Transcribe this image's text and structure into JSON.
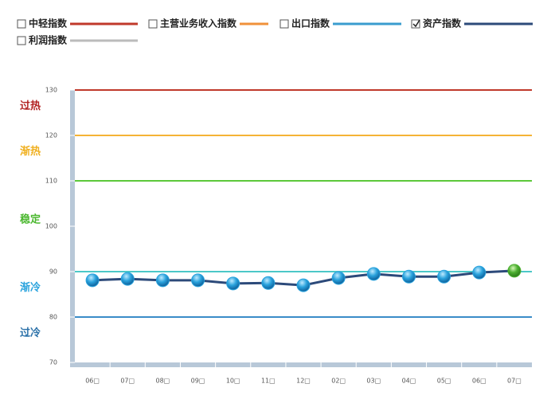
{
  "chart_data": {
    "type": "line",
    "categories": [
      "06□",
      "07□",
      "08□",
      "09□",
      "10□",
      "11□",
      "12□",
      "02□",
      "03□",
      "04□",
      "05□",
      "06□",
      "07□"
    ],
    "series": [
      {
        "name": "中轻指数",
        "color": "#c0392b",
        "checked": false
      },
      {
        "name": "主营业务收入指数",
        "color": "#f0913a",
        "checked": false
      },
      {
        "name": "出口指数",
        "color": "#3a9ccf",
        "checked": false
      },
      {
        "name": "资产指数",
        "color": "#2c4a7a",
        "checked": true,
        "marker_color": "#2aa3dd",
        "last_marker_color": "#4cb030",
        "values": [
          88.1,
          88.4,
          88.1,
          88.1,
          87.4,
          87.5,
          87.0,
          88.6,
          89.5,
          88.9,
          88.9,
          89.8,
          90.2
        ]
      },
      {
        "name": "利润指数",
        "color": "#bbbbbb",
        "checked": false
      }
    ],
    "zones": [
      {
        "label": "过热",
        "line": 130,
        "color": "#c0392b",
        "label_color": "#b22222"
      },
      {
        "label": "渐热",
        "line": 120,
        "color": "#f5b335",
        "label_color": "#f0b020"
      },
      {
        "label": "稳定",
        "line": 110,
        "color": "#5cc83a",
        "label_color": "#4cb830"
      },
      {
        "label": "渐冷",
        "line": 90,
        "color": "#4cc8c8",
        "label_color": "#2aa3dd"
      },
      {
        "label": "过冷",
        "line": 80,
        "color": "#3a8cc8",
        "label_color": "#2a70a8"
      }
    ],
    "ylim": [
      70,
      130
    ],
    "yticks": [
      70,
      80,
      90,
      100,
      110,
      120,
      130
    ]
  }
}
